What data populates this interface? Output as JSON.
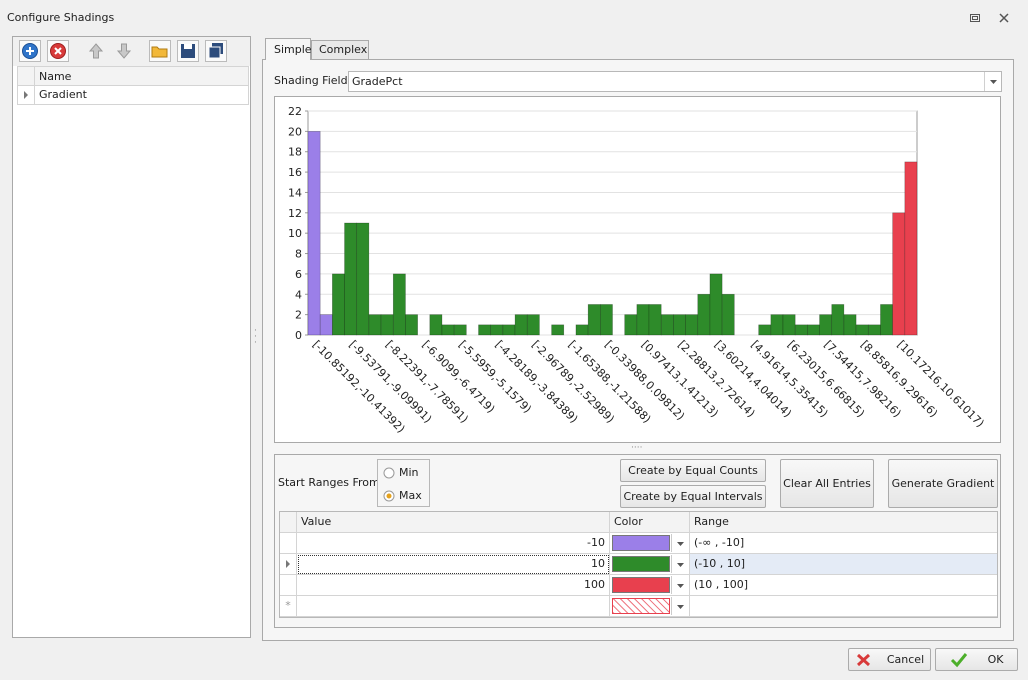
{
  "window": {
    "title": "Configure Shadings"
  },
  "left_panel": {
    "columns": [
      "Name"
    ],
    "rows": [
      "Gradient"
    ]
  },
  "tabs": [
    "Simple",
    "Complex"
  ],
  "active_tab": 0,
  "shading_field": {
    "label": "Shading Field:",
    "value": "GradePct"
  },
  "chart_data": {
    "type": "bar",
    "categories": [
      "[-10.85192,-10.41392)",
      null,
      null,
      "[-9.53791,-9.09991)",
      null,
      null,
      "[-8.22391,-7.78591)",
      null,
      null,
      "[-6.9099,-6.4719)",
      null,
      null,
      "[-5.5959,-5.1579)",
      null,
      null,
      "[-4.28189,-3.84389)",
      null,
      null,
      "[-2.96789,-2.52989)",
      null,
      null,
      "[-1.65388,-1.21588)",
      null,
      null,
      "[-0.33988,0.09812)",
      null,
      null,
      "[0.97413,1.41213)",
      null,
      null,
      "[2.28813,2.72614)",
      null,
      null,
      "[3.60214,4.04014)",
      null,
      null,
      "[4.91614,5.35415)",
      null,
      null,
      "[6.23015,6.66815)",
      null,
      null,
      "[7.54415,7.98216)",
      null,
      null,
      "[8.85816,9.29616)",
      null,
      null,
      "[10.17216,10.61017)",
      null
    ],
    "values": [
      20,
      2,
      6,
      11,
      11,
      2,
      2,
      6,
      2,
      0,
      2,
      1,
      1,
      0,
      1,
      1,
      1,
      2,
      2,
      0,
      1,
      0,
      1,
      3,
      3,
      0,
      2,
      3,
      3,
      2,
      2,
      2,
      4,
      6,
      4,
      0,
      0,
      1,
      2,
      2,
      1,
      1,
      2,
      3,
      2,
      1,
      1,
      3,
      12,
      17
    ],
    "colors": [
      "#9b7fe8",
      "#9b7fe8",
      "#2e8b2a",
      "#2e8b2a",
      "#2e8b2a",
      "#2e8b2a",
      "#2e8b2a",
      "#2e8b2a",
      "#2e8b2a",
      "#2e8b2a",
      "#2e8b2a",
      "#2e8b2a",
      "#2e8b2a",
      "#2e8b2a",
      "#2e8b2a",
      "#2e8b2a",
      "#2e8b2a",
      "#2e8b2a",
      "#2e8b2a",
      "#2e8b2a",
      "#2e8b2a",
      "#2e8b2a",
      "#2e8b2a",
      "#2e8b2a",
      "#2e8b2a",
      "#2e8b2a",
      "#2e8b2a",
      "#2e8b2a",
      "#2e8b2a",
      "#2e8b2a",
      "#2e8b2a",
      "#2e8b2a",
      "#2e8b2a",
      "#2e8b2a",
      "#2e8b2a",
      "#2e8b2a",
      "#2e8b2a",
      "#2e8b2a",
      "#2e8b2a",
      "#2e8b2a",
      "#2e8b2a",
      "#2e8b2a",
      "#2e8b2a",
      "#2e8b2a",
      "#2e8b2a",
      "#2e8b2a",
      "#2e8b2a",
      "#2e8b2a",
      "#e8404e",
      "#e8404e"
    ],
    "ylim": [
      0,
      22
    ],
    "yticks": [
      0,
      2,
      4,
      6,
      8,
      10,
      12,
      14,
      16,
      18,
      20,
      22
    ],
    "grid": true
  },
  "start_ranges": {
    "label": "Start Ranges From:",
    "options": [
      "Min",
      "Max"
    ],
    "selected": 1
  },
  "buttons": {
    "equal_counts": "Create by Equal Counts",
    "equal_intervals": "Create by Equal Intervals",
    "clear": "Clear All Entries",
    "generate": "Generate Gradient"
  },
  "table": {
    "columns": [
      "Value",
      "Color",
      "Range"
    ],
    "rows": [
      {
        "value": "-10",
        "color": "#9b7fe8",
        "range": "(-∞ , -10]"
      },
      {
        "value": "10",
        "color": "#2e8b2a",
        "range": "(-10 , 10]"
      },
      {
        "value": "100",
        "color": "#e8404e",
        "range": "(10 , 100]"
      }
    ]
  },
  "footer": {
    "cancel": "Cancel",
    "ok": "OK"
  }
}
